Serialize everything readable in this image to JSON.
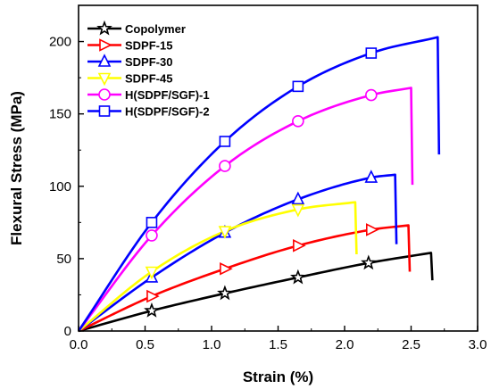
{
  "chart_data": {
    "type": "line",
    "xlabel": "Strain (%)",
    "ylabel": "Flexural Stress (MPa)",
    "xlim": [
      0,
      3.0
    ],
    "ylim": [
      0,
      225
    ],
    "x_ticks": [
      "0.0",
      "0.5",
      "1.0",
      "1.5",
      "2.0",
      "2.5",
      "3.0"
    ],
    "y_ticks": [
      "0",
      "50",
      "100",
      "150",
      "200"
    ],
    "grid": false,
    "legend_position": "top-left",
    "series": [
      {
        "name": "Copolymer",
        "color": "#000000",
        "marker": "star",
        "x": [
          0,
          0.55,
          1.1,
          1.65,
          2.18,
          2.65,
          2.66
        ],
        "y": [
          0,
          14,
          26,
          37,
          47,
          54,
          35
        ],
        "marker_x": [
          0.55,
          1.1,
          1.65,
          2.18
        ]
      },
      {
        "name": "SDPF-15",
        "color": "#ff0000",
        "marker": "triangle-right",
        "x": [
          0,
          0.55,
          1.1,
          1.65,
          2.2,
          2.48,
          2.49
        ],
        "y": [
          0,
          24,
          43,
          59,
          70,
          73,
          41
        ],
        "marker_x": [
          0.55,
          1.1,
          1.65,
          2.2
        ]
      },
      {
        "name": "SDPF-30",
        "color": "#0000ff",
        "marker": "triangle-up",
        "x": [
          0,
          0.55,
          1.1,
          1.65,
          2.2,
          2.38,
          2.39
        ],
        "y": [
          0,
          37,
          68,
          91,
          106,
          108,
          60
        ],
        "marker_x": [
          0.55,
          1.1,
          1.65,
          2.2
        ]
      },
      {
        "name": "SDPF-45",
        "color": "#ffff00",
        "marker": "triangle-down",
        "x": [
          0,
          0.55,
          1.1,
          1.65,
          2.08,
          2.09
        ],
        "y": [
          0,
          41,
          69,
          84,
          89,
          53
        ],
        "marker_x": [
          0.55,
          1.1,
          1.65
        ]
      },
      {
        "name": "H(SDPF/SGF)-1",
        "color": "#ff00ff",
        "marker": "circle",
        "x": [
          0,
          0.55,
          1.1,
          1.65,
          2.2,
          2.5,
          2.51
        ],
        "y": [
          0,
          66,
          114,
          145,
          163,
          168,
          101
        ],
        "marker_x": [
          0.55,
          1.1,
          1.65,
          2.2
        ]
      },
      {
        "name": "H(SDPF/SGF)-2",
        "color": "#0000ff",
        "marker": "square",
        "x": [
          0,
          0.55,
          1.1,
          1.65,
          2.2,
          2.7,
          2.71
        ],
        "y": [
          0,
          75,
          131,
          169,
          192,
          203,
          122
        ],
        "marker_x": [
          0.55,
          1.1,
          1.65,
          2.2
        ]
      }
    ]
  }
}
